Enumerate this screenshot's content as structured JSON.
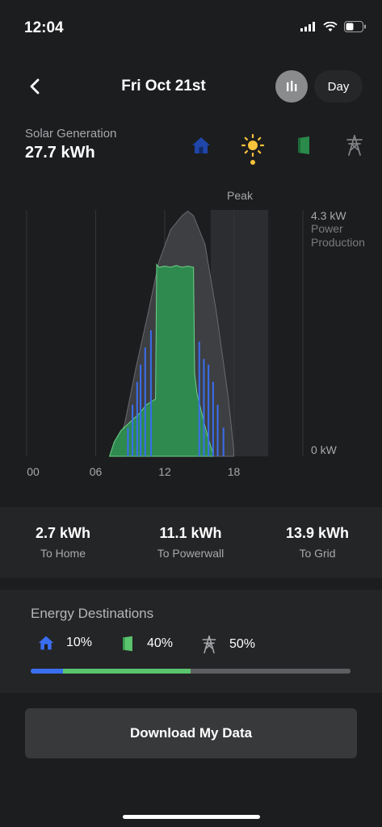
{
  "status_bar": {
    "time": "12:04"
  },
  "header": {
    "title": "Fri Oct 21st",
    "period": "Day"
  },
  "summary": {
    "label": "Solar Generation",
    "value": "27.7 kWh"
  },
  "sources": [
    {
      "name": "home",
      "color": "#3a6ef0"
    },
    {
      "name": "solar",
      "color": "#f5c33b",
      "selected": true
    },
    {
      "name": "powerwall",
      "color": "#2f9a55"
    },
    {
      "name": "grid",
      "color": "#8b8c8f"
    }
  ],
  "chart_data": {
    "type": "area",
    "peak_label": "Peak",
    "y_top_label": "4.3 kW",
    "y_top_sublabel_1": "Power",
    "y_top_sublabel_2": "Production",
    "y_bottom_label": "0 kW",
    "x_ticks": [
      "00",
      "06",
      "12",
      "18"
    ],
    "ylim": [
      0,
      4.3
    ],
    "xlim_hours": [
      0,
      24
    ],
    "peak_window_hours": [
      16,
      21
    ],
    "series": [
      {
        "color": "#3e3f42",
        "x": [
          7.5,
          8.5,
          9.5,
          10.5,
          11.5,
          12.5,
          13.5,
          14,
          14.5,
          15.5,
          16.5,
          17.5,
          18
        ],
        "values": [
          0.05,
          0.55,
          1.55,
          2.45,
          3.4,
          3.95,
          4.2,
          4.28,
          4.2,
          3.7,
          2.5,
          1.05,
          0.1
        ]
      },
      {
        "color": "#2f8a50",
        "x": [
          7.2,
          7.6,
          8.2,
          9.0,
          9.8,
          10.4,
          11.2,
          11.3,
          11.5,
          12.0,
          12.5,
          13,
          13.5,
          14,
          14.5,
          14.6,
          14.8,
          15.4,
          15.8,
          16.2
        ],
        "values": [
          0,
          0.25,
          0.45,
          0.6,
          0.75,
          0.9,
          1.0,
          3.35,
          3.3,
          3.32,
          3.3,
          3.33,
          3.3,
          3.32,
          3.3,
          1.45,
          1.1,
          0.6,
          0.3,
          0.05
        ]
      },
      {
        "color": "#3a6ef0",
        "spikes_x": [
          8.8,
          9.2,
          9.6,
          9.9,
          10.3,
          10.8,
          15.0,
          15.4,
          15.8,
          16.2,
          16.6,
          17.1
        ],
        "spikes_values": [
          0.5,
          0.9,
          1.3,
          1.6,
          1.9,
          2.2,
          2.0,
          1.7,
          1.6,
          1.3,
          0.9,
          0.5
        ]
      }
    ]
  },
  "totals": [
    {
      "value": "2.7 kWh",
      "label": "To Home"
    },
    {
      "value": "11.1 kWh",
      "label": "To Powerwall"
    },
    {
      "value": "13.9 kWh",
      "label": "To Grid"
    }
  ],
  "destinations": {
    "title": "Energy Destinations",
    "items": [
      {
        "icon": "home-icon",
        "percent": "10%",
        "fraction": 0.1,
        "color": "#3a6ef0"
      },
      {
        "icon": "powerwall-icon",
        "percent": "40%",
        "fraction": 0.4,
        "color": "#5ac46e"
      },
      {
        "icon": "grid-tower-icon",
        "percent": "50%",
        "fraction": 0.5,
        "color": "#5e5f62"
      }
    ]
  },
  "download_label": "Download My Data"
}
